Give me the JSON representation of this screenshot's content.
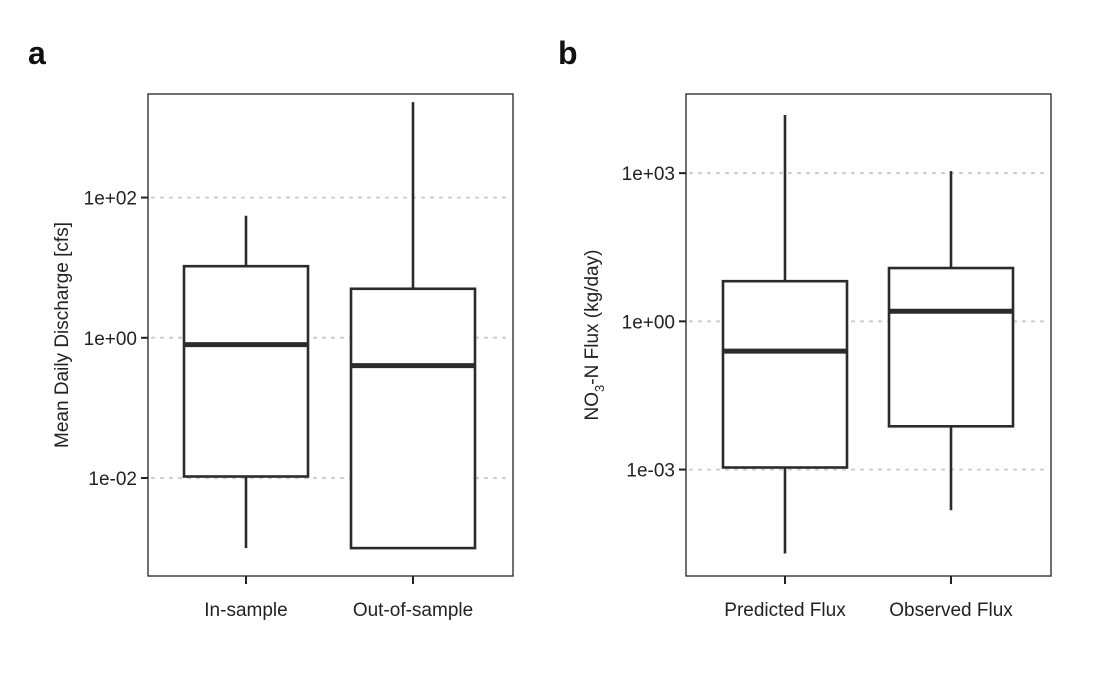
{
  "chart_data": [
    {
      "panel": "a",
      "type": "box",
      "scale": "log10",
      "ylabel": "Mean Daily Discharge [cfs]",
      "ylim": [
        0.0004,
        3000
      ],
      "yticks": [
        0.01,
        1,
        100
      ],
      "ytick_labels": [
        "1e-02",
        "1e+00",
        "1e+02"
      ],
      "grid": true,
      "categories": [
        "In-sample",
        "Out-of-sample"
      ],
      "boxes": [
        {
          "category": "In-sample",
          "min": 0.001,
          "q1": 0.0105,
          "median": 0.8,
          "q3": 10.5,
          "max": 55
        },
        {
          "category": "Out-of-sample",
          "min": 0.001,
          "q1": 0.001,
          "median": 0.4,
          "q3": 5,
          "max": 2300
        }
      ]
    },
    {
      "panel": "b",
      "type": "box",
      "scale": "log10",
      "ylabel": "NO3-N Flux (kg/day)",
      "ylabel_parts": {
        "pre": "NO",
        "sub": "3",
        "post": "-N Flux (kg/day)"
      },
      "ylim": [
        7e-06,
        40000
      ],
      "yticks": [
        0.001,
        1,
        1000
      ],
      "ytick_labels": [
        "1e-03",
        "1e+00",
        "1e+03"
      ],
      "grid": true,
      "categories": [
        "Predicted Flux",
        "Observed Flux"
      ],
      "boxes": [
        {
          "category": "Predicted Flux",
          "min": 2e-05,
          "q1": 0.0011,
          "median": 0.25,
          "q3": 6.5,
          "max": 15000
        },
        {
          "category": "Observed Flux",
          "min": 0.00015,
          "q1": 0.0075,
          "median": 1.6,
          "q3": 12,
          "max": 1100
        }
      ]
    }
  ]
}
